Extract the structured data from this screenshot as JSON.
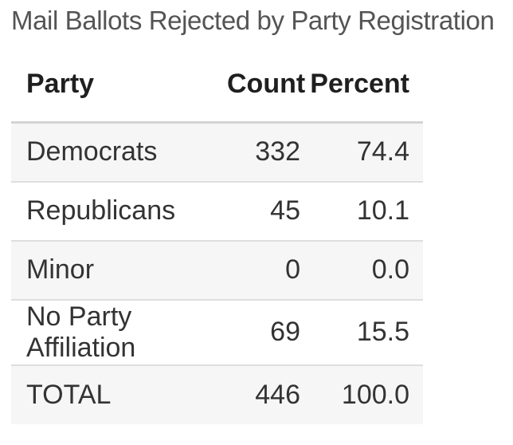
{
  "title": "Mail Ballots Rejected by Party Registration",
  "colors": {
    "title_text": "#545454",
    "header_text": "#1f1f1f",
    "body_text": "#333333",
    "zebra_row_bg": "#f6f6f6",
    "row_divider": "#dedede",
    "header_divider": "#d4d4d4",
    "page_bg": "#ffffff"
  },
  "chart_data": {
    "type": "table",
    "title": "Mail Ballots Rejected by Party Registration",
    "columns": [
      "Party",
      "Count",
      "Percent"
    ],
    "rows": [
      [
        "Democrats",
        "332",
        "74.4"
      ],
      [
        "Republicans",
        "45",
        "10.1"
      ],
      [
        "Minor",
        "0",
        "0.0"
      ],
      [
        "No Party Affiliation",
        "69",
        "15.5"
      ],
      [
        "TOTAL",
        "446",
        "100.0"
      ]
    ],
    "counts_numeric": [
      332,
      45,
      0,
      69,
      446
    ],
    "percents_numeric": [
      74.4,
      10.1,
      0.0,
      15.5,
      100.0
    ],
    "layout_hints": {
      "numeric_columns_right_aligned": true,
      "zebra_striping": "odd rows shaded",
      "total_row_bold": false
    }
  }
}
